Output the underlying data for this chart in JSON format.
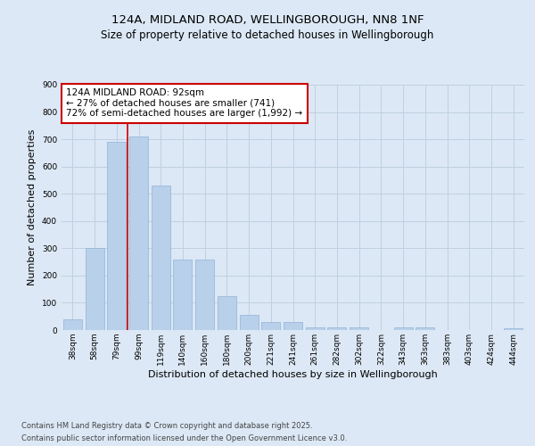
{
  "title_line1": "124A, MIDLAND ROAD, WELLINGBOROUGH, NN8 1NF",
  "title_line2": "Size of property relative to detached houses in Wellingborough",
  "xlabel": "Distribution of detached houses by size in Wellingborough",
  "ylabel": "Number of detached properties",
  "categories": [
    "38sqm",
    "58sqm",
    "79sqm",
    "99sqm",
    "119sqm",
    "140sqm",
    "160sqm",
    "180sqm",
    "200sqm",
    "221sqm",
    "241sqm",
    "261sqm",
    "282sqm",
    "302sqm",
    "322sqm",
    "343sqm",
    "363sqm",
    "383sqm",
    "403sqm",
    "424sqm",
    "444sqm"
  ],
  "values": [
    40,
    300,
    690,
    710,
    530,
    260,
    260,
    125,
    55,
    30,
    30,
    10,
    10,
    10,
    0,
    10,
    10,
    0,
    0,
    0,
    5
  ],
  "bar_color": "#b8d0ea",
  "bar_edgecolor": "#90b4d8",
  "bar_linewidth": 0.5,
  "ylim": [
    0,
    900
  ],
  "yticks": [
    0,
    100,
    200,
    300,
    400,
    500,
    600,
    700,
    800,
    900
  ],
  "grid_color": "#c0d0e0",
  "background_color": "#dce8f5",
  "annotation_text": "124A MIDLAND ROAD: 92sqm\n← 27% of detached houses are smaller (741)\n72% of semi-detached houses are larger (1,992) →",
  "annotation_box_color": "#ffffff",
  "annotation_box_edgecolor": "#cc0000",
  "vline_color": "#cc0000",
  "vline_x": 2.5,
  "footer_line1": "Contains HM Land Registry data © Crown copyright and database right 2025.",
  "footer_line2": "Contains public sector information licensed under the Open Government Licence v3.0.",
  "title_fontsize": 9.5,
  "subtitle_fontsize": 8.5,
  "axis_label_fontsize": 8,
  "tick_fontsize": 6.5,
  "annotation_fontsize": 7.5,
  "footer_fontsize": 6.0
}
